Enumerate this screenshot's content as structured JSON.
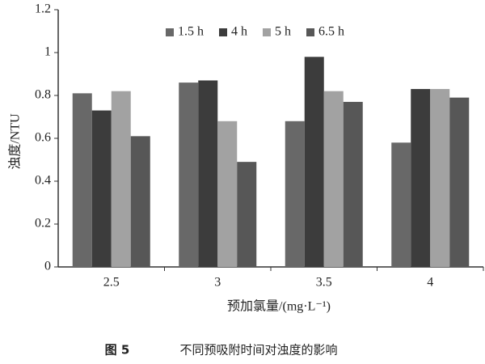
{
  "chart_data": {
    "type": "bar",
    "y_label": "浊度/NTU",
    "x_label": "预加氯量/(mg·L⁻¹)",
    "figure_label": "图 5",
    "title": "不同预吸附时间对浊度的影响",
    "categories": [
      "2.5",
      "3",
      "3.5",
      "4"
    ],
    "series": [
      {
        "name": "1.5 h",
        "color": "#686868",
        "values": [
          0.81,
          0.86,
          0.68,
          0.58
        ]
      },
      {
        "name": "4 h",
        "color": "#3c3c3c",
        "values": [
          0.73,
          0.87,
          0.98,
          0.83
        ]
      },
      {
        "name": "5 h",
        "color": "#a2a2a2",
        "values": [
          0.82,
          0.68,
          0.82,
          0.83
        ]
      },
      {
        "name": "6.5 h",
        "color": "#575757",
        "values": [
          0.61,
          0.49,
          0.77,
          0.79
        ]
      }
    ],
    "ylim": [
      0,
      1.2
    ],
    "yticks": [
      0,
      0.2,
      0.4,
      0.6,
      0.8,
      1,
      1.2
    ],
    "grid": false,
    "legend": "top"
  }
}
